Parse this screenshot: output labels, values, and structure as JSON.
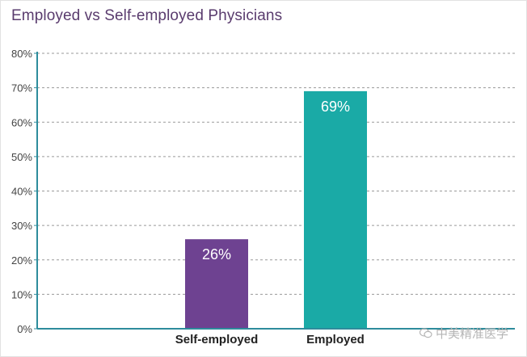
{
  "chart_data": {
    "type": "bar",
    "title": "Employed vs Self-employed Physicians",
    "categories": [
      "Self-employed",
      "Employed"
    ],
    "values": [
      26,
      69
    ],
    "data_labels": [
      "26%",
      "69%"
    ],
    "colors": [
      "#6e4291",
      "#1aaaa6"
    ],
    "ylim": [
      0,
      80
    ],
    "yticks": [
      0,
      10,
      20,
      30,
      40,
      50,
      60,
      70,
      80
    ],
    "ytick_labels": [
      "0%",
      "10%",
      "20%",
      "30%",
      "40%",
      "50%",
      "60%",
      "70%",
      "80%"
    ],
    "grid": true,
    "axis_color": "#2e8c9c",
    "grid_color": "#9a9a9a"
  },
  "watermark": {
    "text": "中美精准医学",
    "icon": "wechat-icon"
  }
}
